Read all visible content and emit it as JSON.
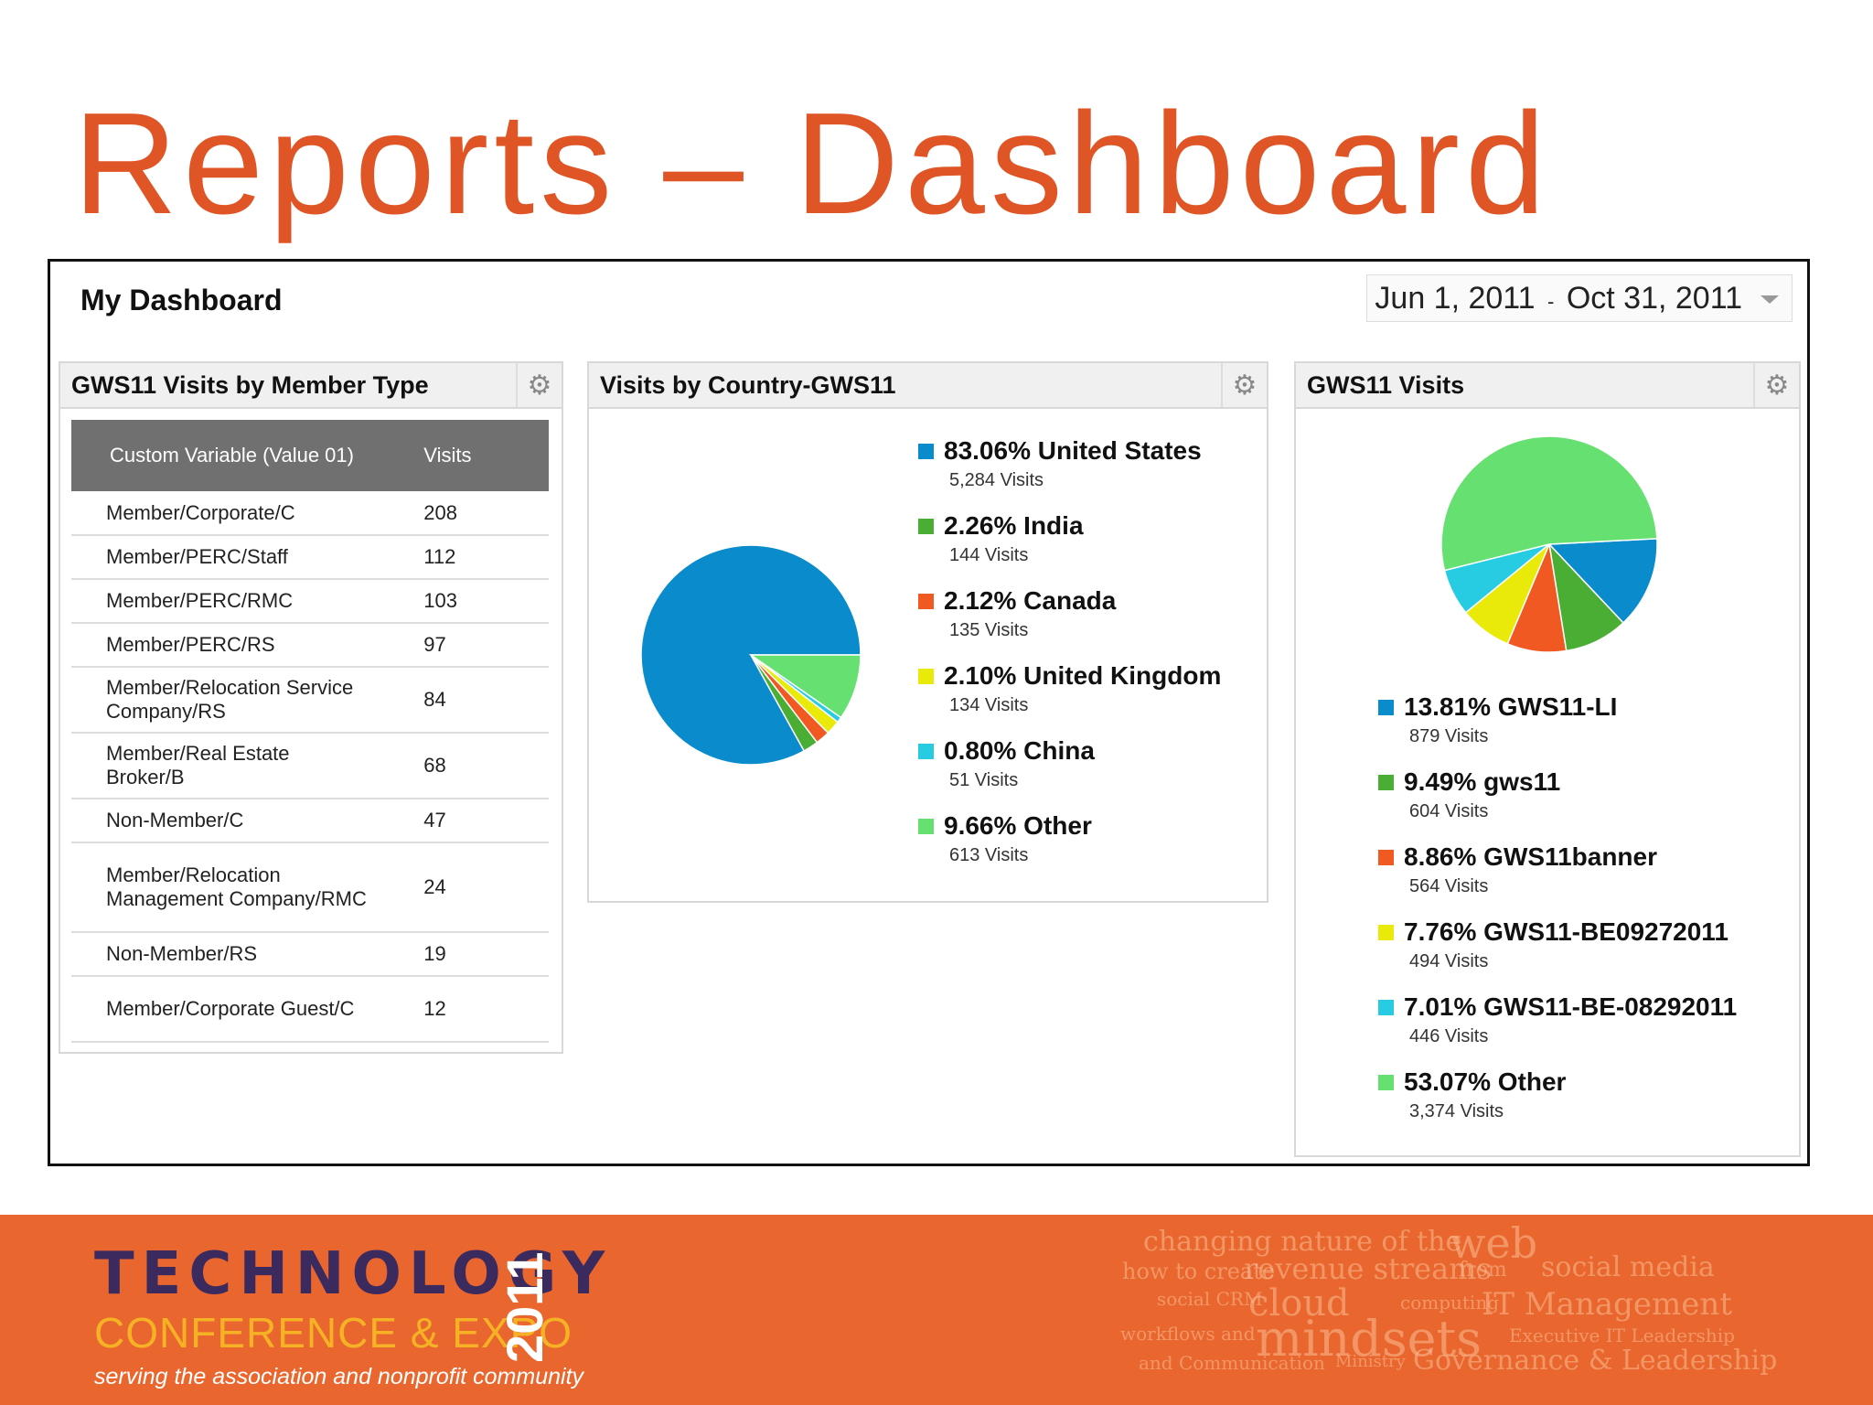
{
  "slide": {
    "title": "Reports – Dashboard"
  },
  "dashboard": {
    "title": "My Dashboard",
    "date_start": "Jun 1, 2011",
    "date_sep": "-",
    "date_end": "Oct 31, 2011"
  },
  "widget_member_type": {
    "title": "GWS11 Visits by Member Type",
    "columns": [
      "Custom Variable (Value 01)",
      "Visits"
    ],
    "rows": [
      {
        "label": "Member/Corporate/C",
        "visits": "208"
      },
      {
        "label": "Member/PERC/Staff",
        "visits": "112"
      },
      {
        "label": "Member/PERC/RMC",
        "visits": "103"
      },
      {
        "label": "Member/PERC/RS",
        "visits": "97"
      },
      {
        "label": "Member/Relocation Service Company/RS",
        "visits": "84"
      },
      {
        "label": "Member/Real Estate Broker/B",
        "visits": "68"
      },
      {
        "label": "Non-Member/C",
        "visits": "47"
      },
      {
        "label": "Member/Relocation Management Company/RMC",
        "visits": "24"
      },
      {
        "label": "Non-Member/RS",
        "visits": "19"
      },
      {
        "label": "Member/Corporate Guest/C",
        "visits": "12"
      }
    ]
  },
  "widget_country": {
    "title": "Visits by Country-GWS11"
  },
  "widget_visits": {
    "title": "GWS11 Visits"
  },
  "colors": {
    "accent": "#df5526",
    "footer": "#e9672e"
  },
  "chart_data": [
    {
      "type": "pie",
      "categories": [
        "United States",
        "India",
        "Canada",
        "United Kingdom",
        "China",
        "Other"
      ],
      "values": [
        83.06,
        2.26,
        2.12,
        2.1,
        0.8,
        9.66
      ],
      "labels": [
        "83.06% United States",
        "2.26% India",
        "2.12% Canada",
        "2.10% United Kingdom",
        "0.80% China",
        "9.66% Other"
      ],
      "visits": [
        "5,284 Visits",
        "144 Visits",
        "135 Visits",
        "134 Visits",
        "51 Visits",
        "613 Visits"
      ],
      "colors": [
        "#0a8bcb",
        "#4aae35",
        "#f05a22",
        "#eaea0a",
        "#27cce3",
        "#66e070"
      ],
      "legend": "right"
    },
    {
      "type": "pie",
      "categories": [
        "GWS11-LI",
        "gws11",
        "GWS11banner",
        "GWS11-BE09272011",
        "GWS11-BE-08292011",
        "Other"
      ],
      "values": [
        13.81,
        9.49,
        8.86,
        7.76,
        7.01,
        53.07
      ],
      "labels": [
        "13.81% GWS11-LI",
        "9.49% gws11",
        "8.86% GWS11banner",
        "7.76% GWS11-BE09272011",
        "7.01% GWS11-BE-08292011",
        "53.07% Other"
      ],
      "visits": [
        "879 Visits",
        "604 Visits",
        "564 Visits",
        "494 Visits",
        "446 Visits",
        "3,374 Visits"
      ],
      "colors": [
        "#0a8bcb",
        "#4aae35",
        "#f05a22",
        "#eaea0a",
        "#27cce3",
        "#66e070"
      ],
      "legend": "bottom"
    }
  ],
  "footer": {
    "logo_line1": "TECHNOLOGY",
    "logo_line2": "CONFERENCE & EXPO",
    "logo_year": "2011",
    "tagline": "serving the association and nonprofit community",
    "cloud": [
      "changing nature of the",
      "web",
      "how to create",
      "revenue streams",
      "from",
      "social media",
      "social CRM",
      "cloud",
      "computing",
      "IT Management",
      "workflows and",
      "mindsets",
      "Executive IT Leadership",
      "and Communication",
      "Ministry",
      "Governance & Leadership"
    ]
  }
}
